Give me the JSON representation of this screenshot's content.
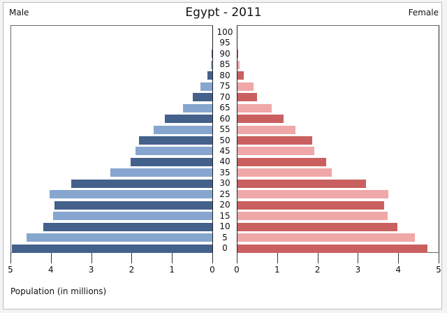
{
  "chart_data": {
    "type": "bar",
    "subtype": "population-pyramid",
    "title": "Egypt - 2011",
    "left_label": "Male",
    "right_label": "Female",
    "xlabel": "Population (in millions)",
    "ylabel": "",
    "xlim": [
      0,
      5
    ],
    "x_ticks": [
      0,
      1,
      2,
      3,
      4,
      5
    ],
    "categories": [
      "0",
      "5",
      "10",
      "15",
      "20",
      "25",
      "30",
      "35",
      "40",
      "45",
      "50",
      "55",
      "60",
      "65",
      "70",
      "75",
      "80",
      "85",
      "90",
      "95",
      "100"
    ],
    "series": [
      {
        "name": "Male",
        "colors": [
          "#43618a",
          "#86a6cf"
        ],
        "values": [
          4.96,
          4.61,
          4.18,
          3.94,
          3.91,
          4.03,
          3.49,
          2.52,
          2.02,
          1.91,
          1.81,
          1.45,
          1.18,
          0.73,
          0.49,
          0.3,
          0.12,
          0.03,
          0.01,
          0.0,
          0.0
        ]
      },
      {
        "name": "Female",
        "colors": [
          "#c9605f",
          "#f0a7a8"
        ],
        "values": [
          4.7,
          4.39,
          3.97,
          3.72,
          3.64,
          3.73,
          3.19,
          2.34,
          2.19,
          1.9,
          1.85,
          1.43,
          1.14,
          0.84,
          0.49,
          0.39,
          0.15,
          0.05,
          0.01,
          0.0,
          0.0
        ]
      }
    ],
    "grid": false,
    "legend_position": "none"
  },
  "labels": {
    "title": "Egypt - 2011",
    "male": "Male",
    "female": "Female",
    "xlabel": "Population (in millions)"
  }
}
